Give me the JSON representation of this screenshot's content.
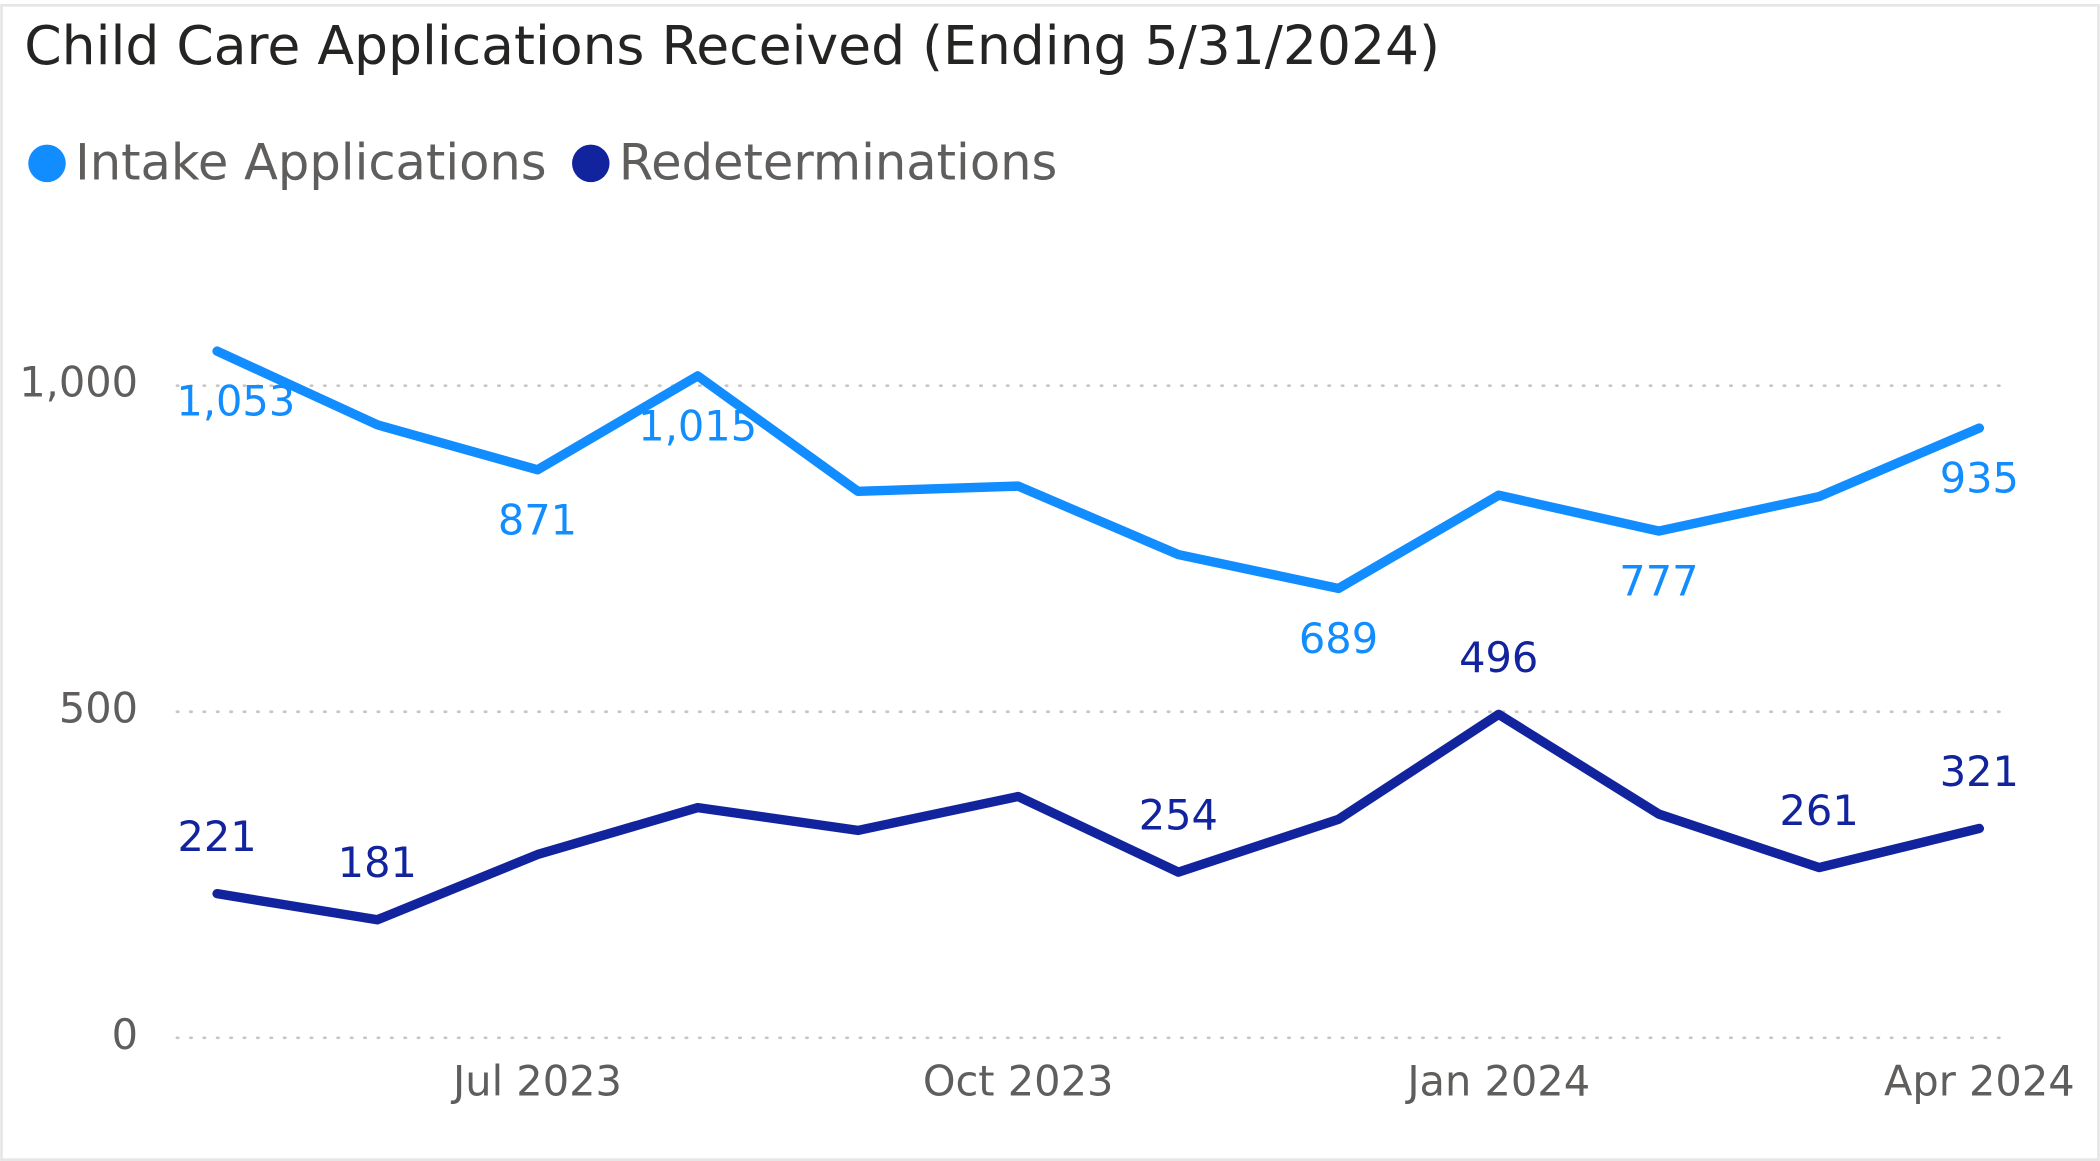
{
  "chart_data": {
    "type": "line",
    "title": "Child Care Applications Received (Ending 5/31/2024)",
    "categories": [
      null,
      null,
      "Jul 2023",
      null,
      null,
      "Oct 2023",
      null,
      null,
      "Jan 2024",
      null,
      null,
      "Apr 2024"
    ],
    "series": [
      {
        "name": "Intake Applications",
        "color": "#118dff",
        "values": [
          1053,
          940,
          871,
          1015,
          838,
          846,
          741,
          689,
          832,
          777,
          830,
          935
        ],
        "value_labels": [
          "1,053",
          null,
          "871",
          "1,015",
          null,
          null,
          null,
          "689",
          null,
          "777",
          null,
          "935"
        ]
      },
      {
        "name": "Redeterminations",
        "color": "#12239e",
        "values": [
          221,
          181,
          281,
          353,
          318,
          370,
          254,
          335,
          496,
          343,
          261,
          321
        ],
        "value_labels": [
          "221",
          "181",
          null,
          null,
          null,
          null,
          "254",
          null,
          "496",
          null,
          "261",
          "321"
        ]
      }
    ],
    "ylim": [
      0,
      1180
    ],
    "yticks": [
      0,
      500,
      {
        "value": 1000,
        "label": "1,000"
      }
    ],
    "grid": true,
    "legend": "top-left"
  }
}
